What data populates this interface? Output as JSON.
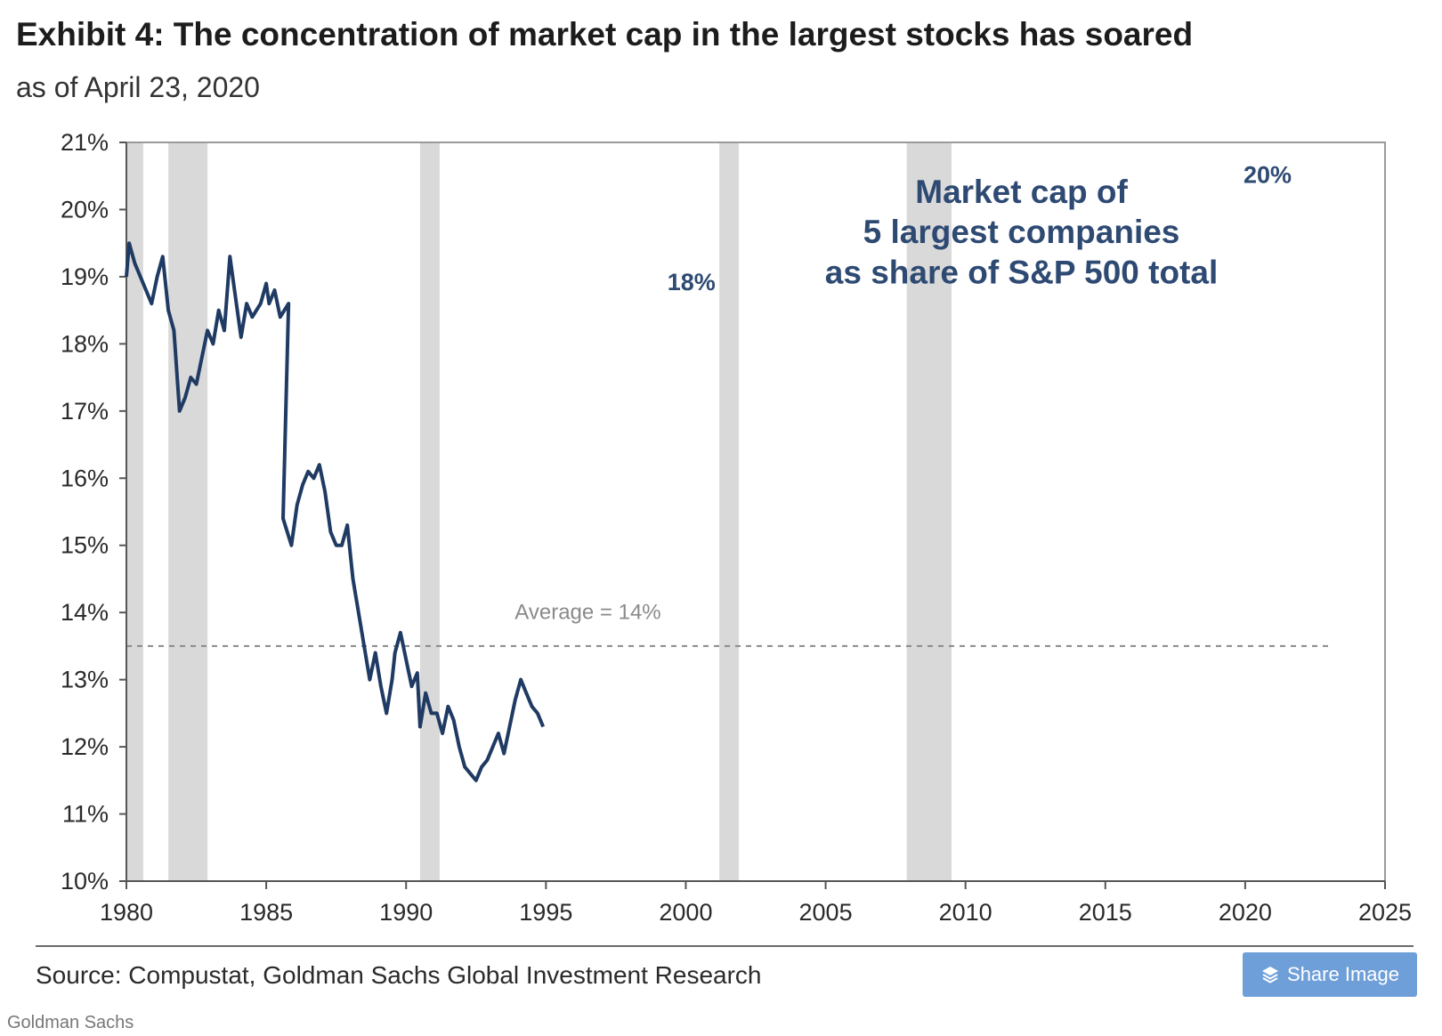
{
  "header": {
    "title": "Exhibit 4: The concentration of market cap in the largest stocks has soared",
    "subtitle": "as of April 23, 2020"
  },
  "chart_data": {
    "type": "line",
    "title": "Exhibit 4: The concentration of market cap in the largest stocks has soared",
    "subtitle": "as of April 23, 2020",
    "xlabel": "",
    "ylabel": "",
    "xlim": [
      1980,
      2025
    ],
    "ylim": [
      10,
      21
    ],
    "x_ticks": [
      1980,
      1985,
      1990,
      1995,
      2000,
      2005,
      2010,
      2015,
      2020,
      2025
    ],
    "x_tick_labels": [
      "1980",
      "1985",
      "1990",
      "1995",
      "2000",
      "2005",
      "2010",
      "2015",
      "2020",
      "2025"
    ],
    "y_ticks": [
      10,
      11,
      12,
      13,
      14,
      15,
      16,
      17,
      18,
      19,
      20,
      21
    ],
    "y_tick_labels": [
      "10%",
      "11%",
      "12%",
      "13%",
      "14%",
      "15%",
      "16%",
      "17%",
      "18%",
      "19%",
      "20%",
      "21%"
    ],
    "grid": false,
    "legend": "none",
    "series": [
      {
        "name": "Market cap of 5 largest companies as share of S&P 500 total",
        "color": "#1f3a63",
        "points": [
          [
            1980.0,
            19.0
          ],
          [
            1980.1,
            19.5
          ],
          [
            1980.3,
            19.2
          ],
          [
            1980.5,
            19.0
          ],
          [
            1980.7,
            18.8
          ],
          [
            1980.9,
            18.6
          ],
          [
            1981.1,
            19.0
          ],
          [
            1981.3,
            19.3
          ],
          [
            1981.5,
            18.5
          ],
          [
            1981.7,
            18.2
          ],
          [
            1981.9,
            17.0
          ],
          [
            1982.1,
            17.2
          ],
          [
            1982.3,
            17.5
          ],
          [
            1982.5,
            17.4
          ],
          [
            1982.7,
            17.8
          ],
          [
            1982.9,
            18.2
          ],
          [
            1983.1,
            18.0
          ],
          [
            1983.3,
            18.5
          ],
          [
            1983.5,
            18.2
          ],
          [
            1983.7,
            19.3
          ],
          [
            1983.9,
            18.7
          ],
          [
            1984.1,
            18.1
          ],
          [
            1984.3,
            18.6
          ],
          [
            1984.5,
            18.4
          ],
          [
            1984.8,
            18.6
          ],
          [
            1985.0,
            18.9
          ],
          [
            1985.1,
            18.6
          ],
          [
            1985.3,
            18.8
          ],
          [
            1985.5,
            18.4
          ],
          [
            1985.8,
            18.6
          ],
          [
            1985.6,
            15.4
          ],
          [
            1985.9,
            15.0
          ],
          [
            1986.1,
            15.6
          ],
          [
            1986.3,
            15.9
          ],
          [
            1986.5,
            16.1
          ],
          [
            1986.7,
            16.0
          ],
          [
            1986.9,
            16.2
          ],
          [
            1987.1,
            15.8
          ],
          [
            1987.3,
            15.2
          ],
          [
            1987.5,
            15.0
          ],
          [
            1987.7,
            15.0
          ],
          [
            1987.9,
            15.3
          ],
          [
            1988.1,
            14.5
          ],
          [
            1988.3,
            14.0
          ],
          [
            1988.5,
            13.5
          ],
          [
            1988.7,
            13.0
          ],
          [
            1988.9,
            13.4
          ],
          [
            1989.1,
            12.9
          ],
          [
            1989.3,
            12.5
          ],
          [
            1989.5,
            13.0
          ],
          [
            1989.6,
            13.4
          ],
          [
            1989.8,
            13.7
          ],
          [
            1990.0,
            13.3
          ],
          [
            1990.2,
            12.9
          ],
          [
            1990.4,
            13.1
          ],
          [
            1990.5,
            12.3
          ],
          [
            1990.7,
            12.8
          ],
          [
            1990.9,
            12.5
          ],
          [
            1991.1,
            12.5
          ],
          [
            1991.3,
            12.2
          ],
          [
            1991.5,
            12.6
          ],
          [
            1991.7,
            12.4
          ],
          [
            1991.9,
            12.0
          ],
          [
            1992.1,
            11.7
          ],
          [
            1992.3,
            11.6
          ],
          [
            1992.5,
            11.5
          ],
          [
            1992.7,
            11.7
          ],
          [
            1992.9,
            11.8
          ],
          [
            1993.1,
            12.0
          ],
          [
            1993.3,
            12.2
          ],
          [
            1993.5,
            11.9
          ],
          [
            1993.7,
            12.3
          ],
          [
            1993.9,
            12.7
          ],
          [
            1994.1,
            13.0
          ],
          [
            1994.3,
            12.8
          ],
          [
            1994.5,
            12.6
          ],
          [
            1994.7,
            12.5
          ],
          [
            1994.9,
            12.3
          ]
        ]
      }
    ],
    "annotations": [
      {
        "text": "Market cap of",
        "x": 2012.0,
        "y": 20.1
      },
      {
        "text": "5 largest companies",
        "x": 2012.0,
        "y": 19.5
      },
      {
        "text": "as share of S&P 500 total",
        "x": 2012.0,
        "y": 18.9
      },
      {
        "text": "18%",
        "x": 2000.2,
        "y": 18.8
      },
      {
        "text": "20%",
        "x": 2020.8,
        "y": 20.4
      },
      {
        "text": "Average = 14%",
        "x": 1996.5,
        "y": 13.9
      }
    ],
    "reference_lines": [
      {
        "label": "Average = 14%",
        "y": 13.5,
        "x_range": [
          1980,
          2023
        ]
      }
    ],
    "shaded_periods": [
      [
        1980.0,
        1980.6
      ],
      [
        1981.5,
        1982.9
      ],
      [
        1990.5,
        1991.2
      ],
      [
        2001.2,
        2001.9
      ],
      [
        2007.9,
        2009.5
      ]
    ]
  },
  "footer": {
    "source": "Source: Compustat, Goldman Sachs Global Investment Research",
    "share_label": "Share Image",
    "share_icon": "layers-icon",
    "credit": "Goldman Sachs"
  }
}
